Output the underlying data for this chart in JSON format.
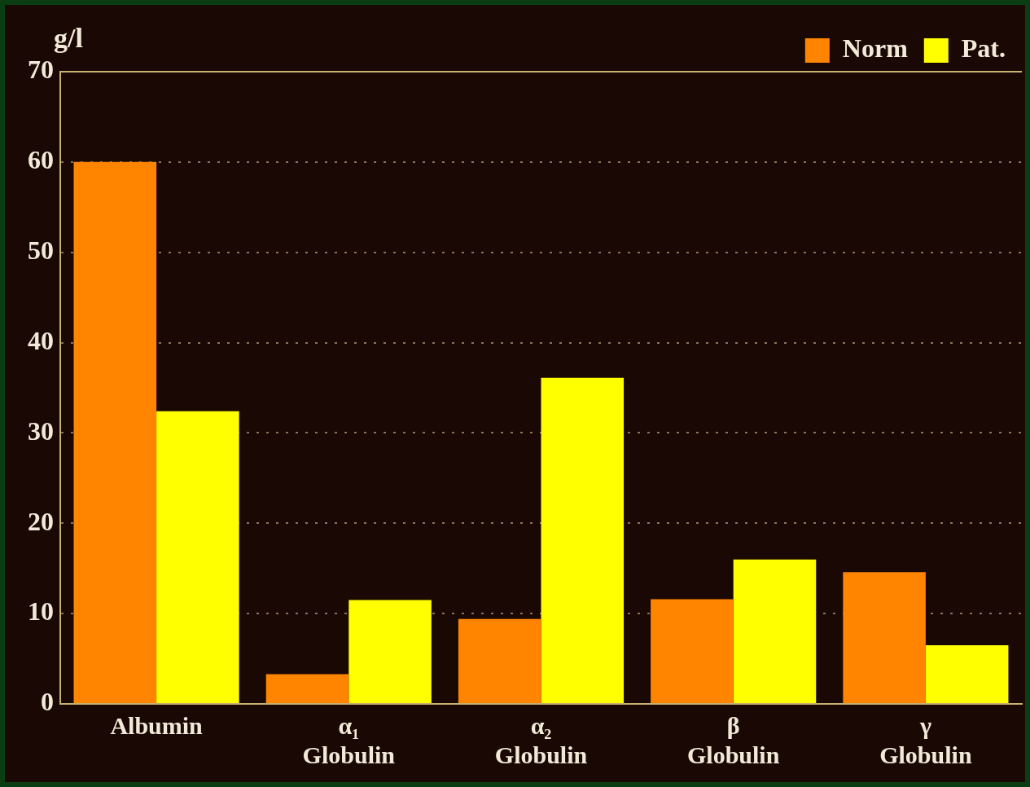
{
  "chart_data": {
    "type": "bar",
    "ylabel": "g/l",
    "categories": [
      "Albumin",
      "α₁\nGlobulin",
      "α₂\nGlobulin",
      "β\nGlobulin",
      "γ\nGlobulin"
    ],
    "series": [
      {
        "name": "Norm",
        "color": "#ff8400",
        "values": [
          60,
          3.3,
          9.4,
          11.6,
          14.6
        ]
      },
      {
        "name": "Pat.",
        "color": "#ffff00",
        "values": [
          32.4,
          11.5,
          36.1,
          16,
          6.5
        ]
      }
    ],
    "ylim": [
      0,
      70
    ],
    "yticks": [
      0,
      10,
      20,
      30,
      40,
      50,
      60,
      70
    ],
    "grid": "y",
    "legend": "top right"
  }
}
